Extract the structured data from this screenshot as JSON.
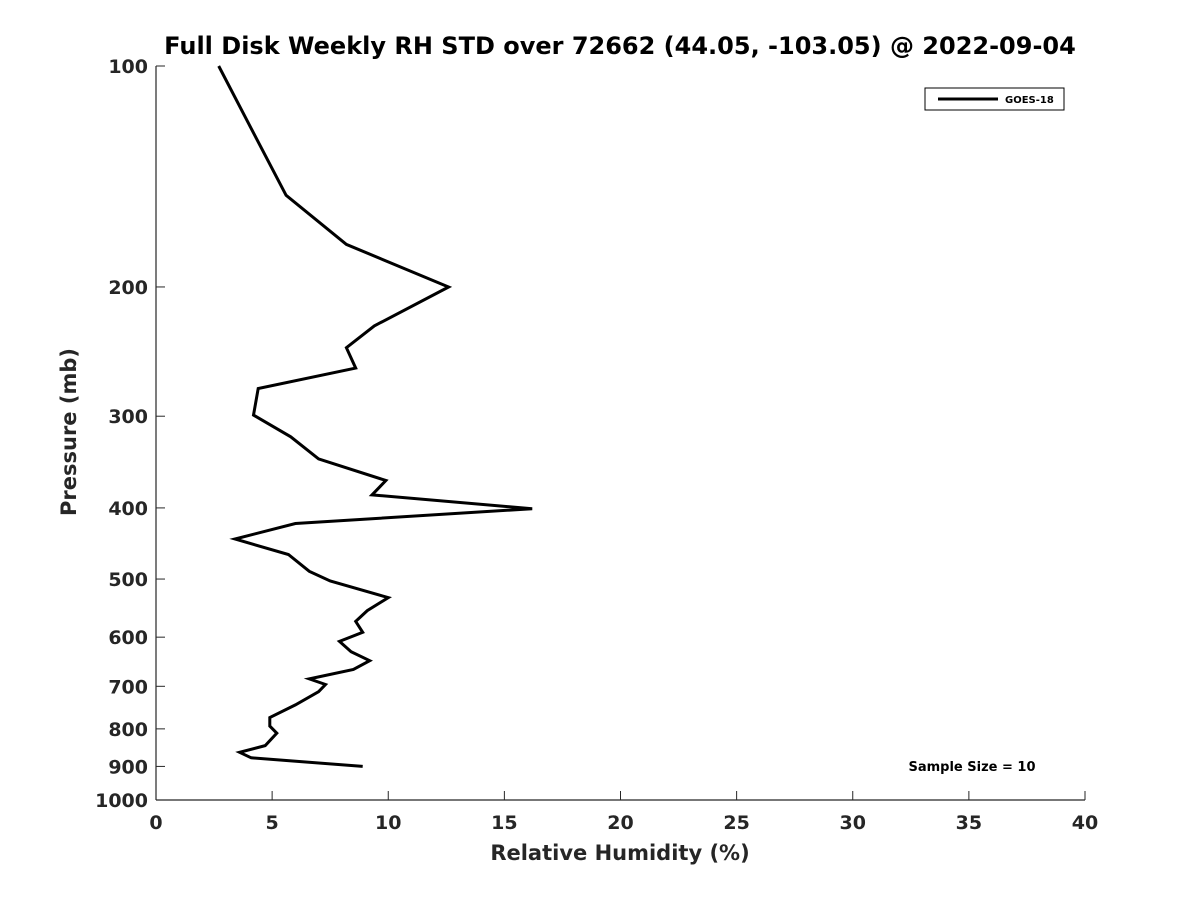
{
  "chart_data": {
    "type": "line",
    "title": "Full Disk Weekly RH STD over 72662 (44.05, -103.05) @ 2022-09-04",
    "xlabel": "Relative Humidity (%)",
    "ylabel": "Pressure (mb)",
    "xlim": [
      0,
      40
    ],
    "ylim": [
      100,
      1000
    ],
    "y_scale": "log",
    "y_reversed": true,
    "x_ticks": [
      0,
      5,
      10,
      15,
      20,
      25,
      30,
      35,
      40
    ],
    "y_ticks": [
      100,
      200,
      300,
      400,
      500,
      600,
      700,
      800,
      900,
      1000
    ],
    "grid": false,
    "legend_position": "top-right",
    "series": [
      {
        "name": "GOES-18",
        "color": "#000000",
        "x": [
          2.7,
          4.0,
          5.6,
          8.2,
          12.6,
          9.4,
          8.2,
          8.6,
          4.4,
          4.2,
          5.8,
          7.0,
          9.9,
          9.3,
          16.2,
          6.0,
          3.4,
          5.7,
          6.6,
          7.5,
          10.0,
          9.1,
          8.6,
          8.9,
          7.9,
          8.4,
          9.2,
          8.5,
          6.6,
          7.3,
          7.0,
          6.0,
          4.9,
          4.9,
          5.2,
          4.7,
          3.6,
          4.1,
          8.9
        ],
        "y": [
          100,
          120,
          150,
          175,
          200,
          226,
          242,
          258,
          275,
          299,
          320,
          343,
          367,
          384,
          401,
          420,
          441,
          463,
          488,
          503,
          530,
          552,
          571,
          591,
          608,
          628,
          646,
          664,
          684,
          696,
          712,
          742,
          772,
          793,
          811,
          843,
          861,
          876,
          900
        ]
      }
    ],
    "annotation": "Sample Size = 10"
  }
}
